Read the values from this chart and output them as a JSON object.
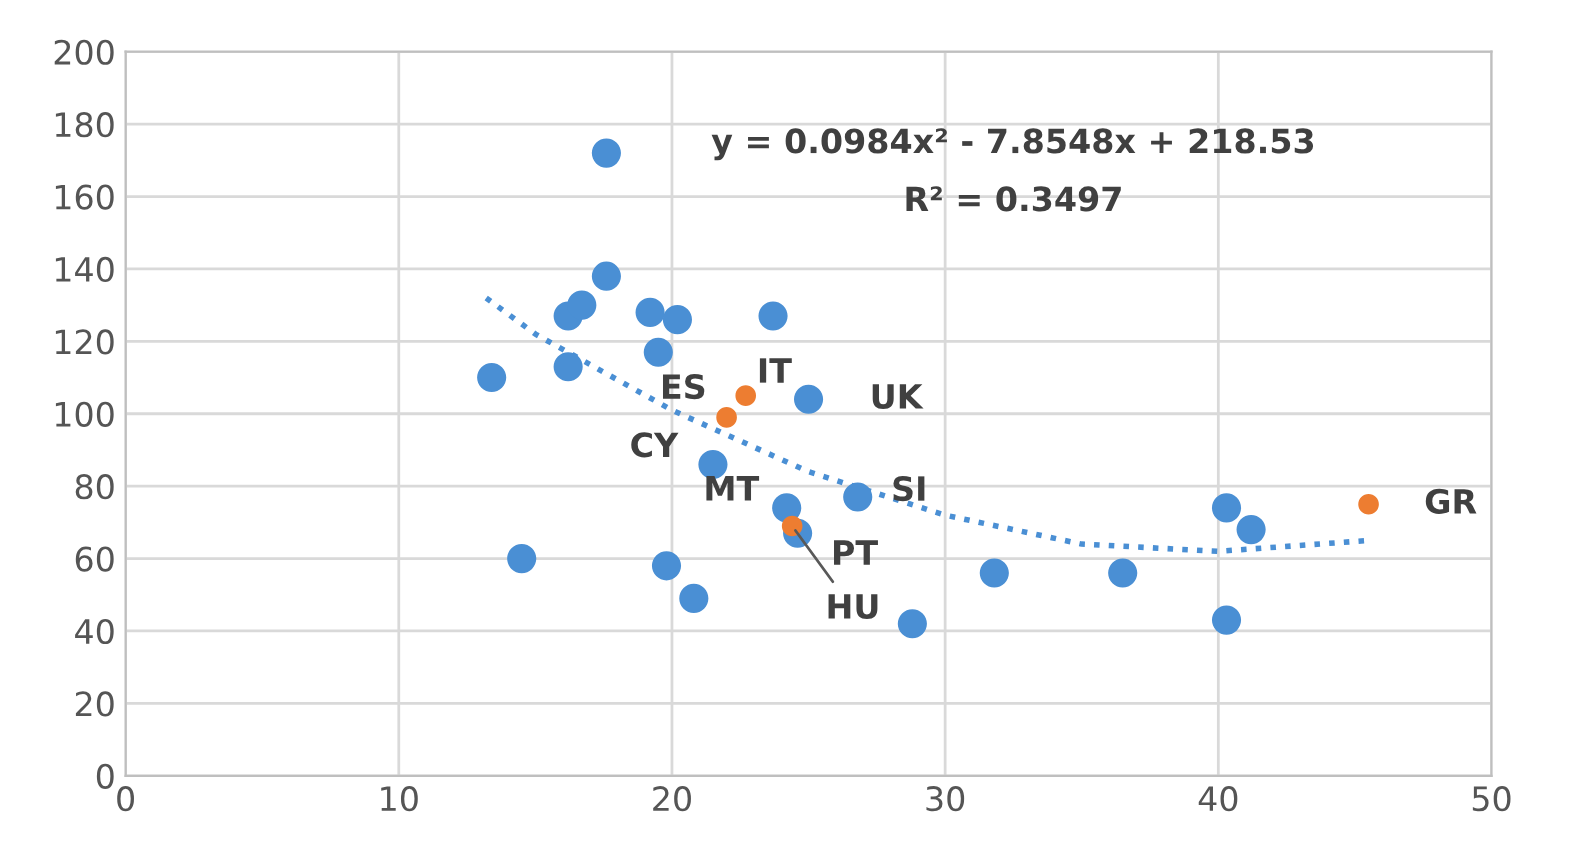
{
  "chart_data": {
    "type": "scatter",
    "series": [
      {
        "color": "#4a8fd4",
        "x": [
          13.4,
          14.5,
          16.2,
          16.2,
          16.7,
          17.6,
          17.6,
          19.2,
          19.5,
          20.2,
          19.8,
          20.8,
          21.5,
          23.7,
          25.0,
          26.8,
          24.2,
          24.6,
          28.8,
          31.8,
          36.5,
          40.3,
          41.2,
          40.3
        ],
        "values": [
          110,
          60,
          113,
          127,
          130,
          172,
          138,
          128,
          117,
          126,
          58,
          49,
          86,
          127,
          104,
          77,
          74,
          67,
          42,
          56,
          56,
          74,
          68,
          43
        ]
      },
      {
        "color": "#ed7d31",
        "x": [
          22.0,
          22.7,
          24.4,
          45.5
        ],
        "values": [
          99,
          105,
          69,
          75
        ]
      },
      {
        "type": "line",
        "color": "#4a8fd4",
        "line_style": "dotted",
        "marker": "none",
        "x": [
          13.2,
          15,
          20,
          25,
          30,
          35,
          40,
          45.5
        ],
        "values": [
          132,
          122,
          101,
          84,
          72,
          64,
          62,
          65
        ]
      }
    ],
    "annotations": [
      "y = 0.0984x² - 7.8548x + 218.53",
      "R² = 0.3497",
      {
        "text": "ES",
        "x": 22.0,
        "y": 99
      },
      {
        "text": "IT",
        "x": 22.7,
        "y": 105
      },
      {
        "text": "UK",
        "x": 25.0,
        "y": 104
      },
      {
        "text": "CY",
        "x": 21.5,
        "y": 86
      },
      {
        "text": "SI",
        "x": 26.8,
        "y": 77
      },
      {
        "text": "MT",
        "x": 24.2,
        "y": 74
      },
      {
        "text": "PT",
        "x": 24.6,
        "y": 67
      },
      {
        "text": "HU",
        "x": 24.4,
        "y": 69
      },
      {
        "text": "GR",
        "x": 45.5,
        "y": 75
      }
    ],
    "xlim": [
      0,
      50
    ],
    "xticks": [
      0,
      10,
      20,
      30,
      40,
      50
    ],
    "ylim": [
      0,
      200
    ],
    "yticks": [
      0,
      20,
      40,
      60,
      80,
      100,
      120,
      140,
      160,
      180,
      200
    ],
    "grid": true,
    "marker": "circle",
    "legend": false
  }
}
